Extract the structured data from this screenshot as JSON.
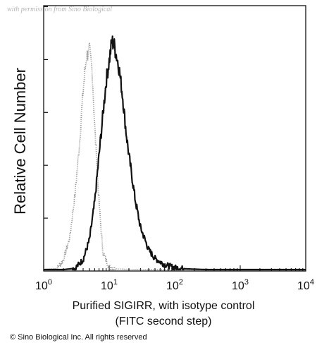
{
  "watermark": "with permission from Sino Biological",
  "copyright": "© Sino Biological Inc. All rights reserved",
  "colors": {
    "sample": "#111111",
    "isotype": "#9a9a9a",
    "axis": "#111111"
  },
  "chart_data": {
    "type": "area",
    "title": "",
    "xlabel": [
      "Purified SIGIRR, with isotype control",
      "(FITC second step)"
    ],
    "ylabel": "Relative Cell Number",
    "xscale": "log",
    "xlim": [
      1,
      10000
    ],
    "ylim": [
      0,
      1
    ],
    "x_ticks": [
      {
        "value": 1,
        "base": "10",
        "exp": "0"
      },
      {
        "value": 10,
        "base": "10",
        "exp": "1"
      },
      {
        "value": 100,
        "base": "10",
        "exp": "2"
      },
      {
        "value": 1000,
        "base": "10",
        "exp": "3"
      },
      {
        "value": 10000,
        "base": "10",
        "exp": "4"
      }
    ],
    "y_tick_count": 5,
    "grid": false,
    "legend": "none",
    "series": [
      {
        "role": "isotype control",
        "style": "dotted-gray",
        "x": [
          1,
          1.6,
          2,
          2.5,
          3,
          3.5,
          4,
          4.5,
          5,
          5.5,
          6,
          7,
          8,
          10,
          13,
          20,
          50,
          10000
        ],
        "values": [
          0,
          0.005,
          0.04,
          0.13,
          0.3,
          0.5,
          0.72,
          0.86,
          0.88,
          0.8,
          0.58,
          0.27,
          0.07,
          0.01,
          0.003,
          0,
          0,
          0
        ]
      },
      {
        "role": "SIGIRR",
        "style": "solid-black",
        "x": [
          1,
          2,
          3,
          4,
          5,
          6,
          7,
          8,
          9,
          10,
          11,
          12,
          14,
          16,
          18,
          20,
          25,
          30,
          40,
          50,
          70,
          100,
          150,
          300,
          10000
        ],
        "values": [
          0,
          0,
          0.005,
          0.04,
          0.12,
          0.27,
          0.46,
          0.62,
          0.76,
          0.84,
          0.92,
          0.9,
          0.82,
          0.7,
          0.56,
          0.46,
          0.28,
          0.17,
          0.08,
          0.045,
          0.02,
          0.008,
          0.003,
          0,
          0
        ]
      }
    ]
  }
}
